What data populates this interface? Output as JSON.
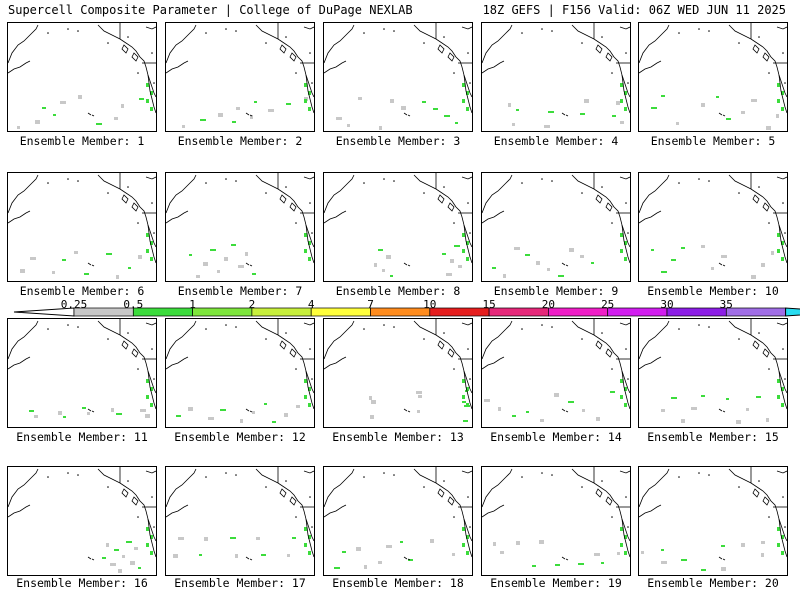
{
  "header": {
    "left": "Supercell Composite Parameter | College of DuPage NEXLAB",
    "right": "18Z GEFS | F156 Valid: 06Z WED JUN 11 2025"
  },
  "legend": {
    "levels": [
      "0.25",
      "0.5",
      "1",
      "2",
      "4",
      "7",
      "10",
      "15",
      "20",
      "25",
      "30",
      "35"
    ],
    "colors": [
      "#c8c8c8",
      "#3cdc3c",
      "#7ee63c",
      "#c8f03c",
      "#ffff3c",
      "#ff8c1e",
      "#e61e1e",
      "#e6287a",
      "#f01ec8",
      "#d21ef0",
      "#8c1ee6",
      "#a06ee6",
      "#28dcf0"
    ]
  },
  "members": [
    {
      "label": "Ensemble Member: 1"
    },
    {
      "label": "Ensemble Member: 2"
    },
    {
      "label": "Ensemble Member: 3"
    },
    {
      "label": "Ensemble Member: 4"
    },
    {
      "label": "Ensemble Member: 5"
    },
    {
      "label": "Ensemble Member: 6"
    },
    {
      "label": "Ensemble Member: 7"
    },
    {
      "label": "Ensemble Member: 8"
    },
    {
      "label": "Ensemble Member: 9"
    },
    {
      "label": "Ensemble Member: 10"
    },
    {
      "label": "Ensemble Member: 11"
    },
    {
      "label": "Ensemble Member: 12"
    },
    {
      "label": "Ensemble Member: 13"
    },
    {
      "label": "Ensemble Member: 14"
    },
    {
      "label": "Ensemble Member: 15"
    },
    {
      "label": "Ensemble Member: 16"
    },
    {
      "label": "Ensemble Member: 17"
    },
    {
      "label": "Ensemble Member: 18"
    },
    {
      "label": "Ensemble Member: 19"
    },
    {
      "label": "Ensemble Member: 20"
    }
  ]
}
